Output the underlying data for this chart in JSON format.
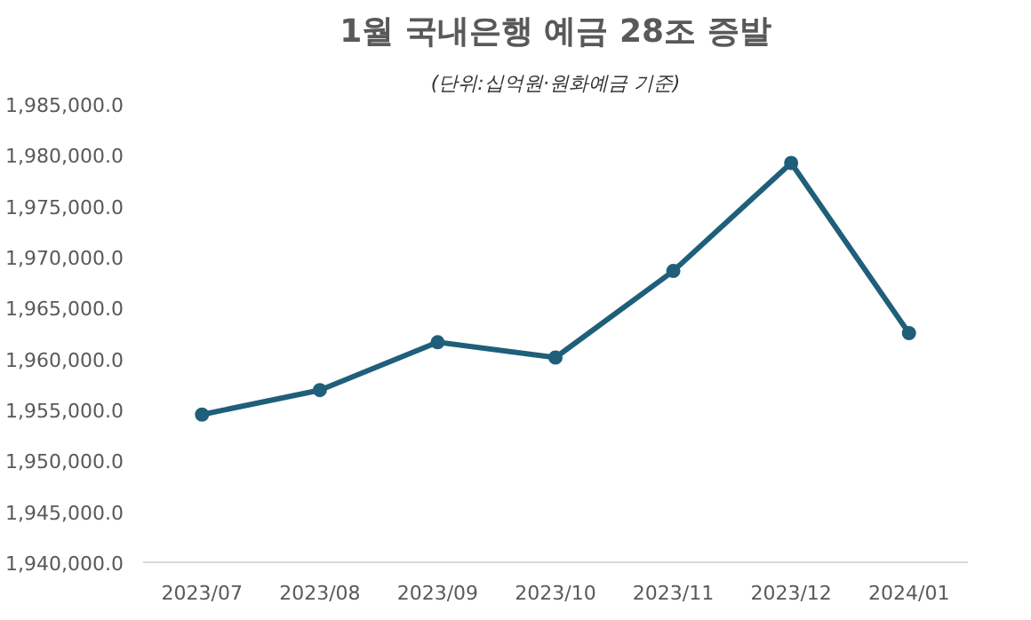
{
  "chart_data": {
    "type": "line",
    "title": "1월 국내은행 예금 28조 증발",
    "subtitle": "(단위:십억원·원화예금 기준)",
    "categories": [
      "2023/07",
      "2023/08",
      "2023/09",
      "2023/10",
      "2023/11",
      "2023/12",
      "2024/01"
    ],
    "series": [
      {
        "color": "#1f5f7a",
        "values": [
          1954500,
          1956900,
          1961600,
          1960100,
          1968600,
          1979200,
          1962500
        ]
      }
    ],
    "ylim": [
      1940000,
      1985000
    ],
    "yticks": [
      {
        "value": 1940000,
        "label": "1,940,000.0"
      },
      {
        "value": 1945000,
        "label": "1,945,000.0"
      },
      {
        "value": 1950000,
        "label": "1,950,000.0"
      },
      {
        "value": 1955000,
        "label": "1,955,000.0"
      },
      {
        "value": 1960000,
        "label": "1,960,000.0"
      },
      {
        "value": 1965000,
        "label": "1,965,000.0"
      },
      {
        "value": 1970000,
        "label": "1,970,000.0"
      },
      {
        "value": 1975000,
        "label": "1,975,000.0"
      },
      {
        "value": 1980000,
        "label": "1,980,000.0"
      },
      {
        "value": 1985000,
        "label": "1,985,000.0"
      }
    ],
    "marker": "circle",
    "line_style": "solid",
    "grid": false
  }
}
